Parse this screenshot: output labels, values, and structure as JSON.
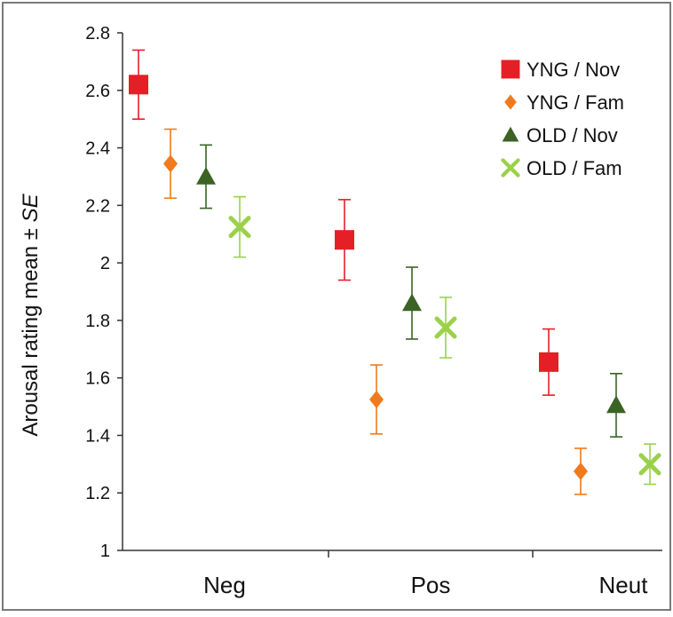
{
  "chart_data": {
    "type": "scatter",
    "categories": [
      "Neg",
      "Pos",
      "Neut"
    ],
    "ylabel_main": "Arousal rating mean ± ",
    "ylabel_italic": "SE",
    "ylim": [
      1,
      2.8
    ],
    "yticks": [
      "1",
      "1.2",
      "1.4",
      "1.6",
      "1.8",
      "2",
      "2.2",
      "2.4",
      "2.6",
      "2.8"
    ],
    "grid": false,
    "legend_position": "top-right",
    "series": [
      {
        "name": "YNG / Nov",
        "marker": "square",
        "color": "#e41f26",
        "bar_color": "#e41f26",
        "values": [
          2.62,
          2.08,
          1.655
        ],
        "errors": [
          0.12,
          0.14,
          0.115
        ]
      },
      {
        "name": "YNG / Fam",
        "marker": "diamond",
        "color": "#f07a1c",
        "bar_color": "#f07a1c",
        "values": [
          2.345,
          1.525,
          1.275
        ],
        "errors": [
          0.12,
          0.12,
          0.08
        ]
      },
      {
        "name": "OLD / Nov",
        "marker": "triangle",
        "color": "#3a6324",
        "bar_color": "#3a6324",
        "values": [
          2.3,
          1.86,
          1.505
        ],
        "errors": [
          0.11,
          0.125,
          0.11
        ]
      },
      {
        "name": "OLD / Fam",
        "marker": "cross",
        "color": "#9bd14a",
        "bar_color": "#9bd14a",
        "values": [
          2.125,
          1.775,
          1.3
        ],
        "errors": [
          0.105,
          0.105,
          0.07
        ]
      }
    ]
  }
}
